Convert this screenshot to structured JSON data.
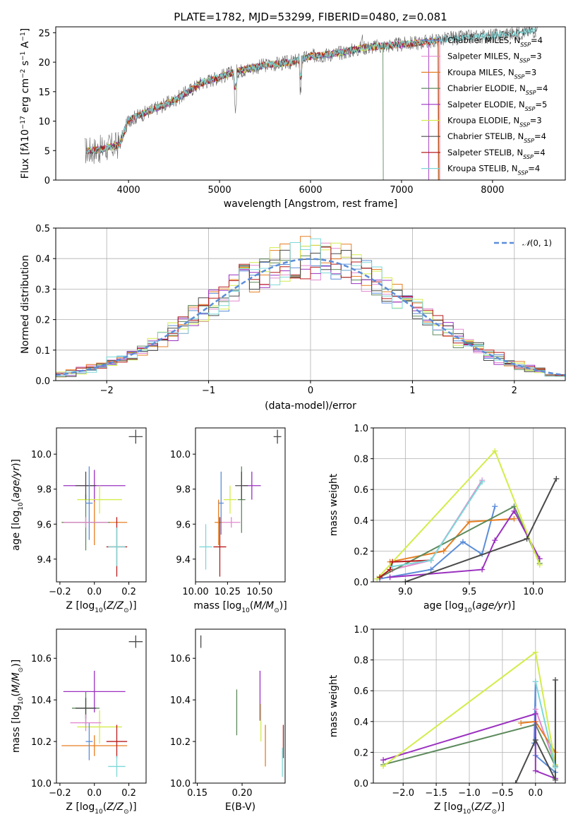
{
  "palette": {
    "orange": "#e67e22",
    "green": "#5d8a5d",
    "purple": "#9b30c0",
    "yellow": "#d4ec4a",
    "dark": "#4a4a4a",
    "red": "#b71c1c",
    "cyan": "#7dd8d8",
    "blue": "#5b8dd9",
    "pink": "#e28ad0"
  },
  "chart_data": [
    {
      "id": "spectrum",
      "type": "line",
      "title": "PLATE=1782, MJD=53299, FIBERID=0480, z=0.081",
      "xlabel": "wavelength [Angstrom, rest frame]",
      "ylabel": "Flux [f_λ 10^{-17} erg cm^{-2} s^{-1} A^{-1}]",
      "xlim": [
        3200,
        8800
      ],
      "ylim": [
        0,
        26
      ],
      "xticks": [
        "4000",
        "5000",
        "6000",
        "7000",
        "8000"
      ],
      "yticks": [
        "0",
        "5",
        "10",
        "15",
        "20",
        "25"
      ],
      "grid": false,
      "legend_position": "right",
      "legend": [
        {
          "name": "Chabrier MILES, N_SSP=4",
          "color": "#5b8dd9"
        },
        {
          "name": "Salpeter MILES, N_SSP=3",
          "color": "#e28ad0"
        },
        {
          "name": "Kroupa MILES, N_SSP=3",
          "color": "#e67e22"
        },
        {
          "name": "Chabrier ELODIE, N_SSP=4",
          "color": "#5d8a5d"
        },
        {
          "name": "Salpeter ELODIE, N_SSP=5",
          "color": "#9b30c0"
        },
        {
          "name": "Kroupa ELODIE, N_SSP=3",
          "color": "#d4ec4a"
        },
        {
          "name": "Chabrier STELIB, N_SSP=4",
          "color": "#4a4a4a"
        },
        {
          "name": "Salpeter STELIB, N_SSP=4",
          "color": "#b71c1c"
        },
        {
          "name": "Kroupa STELIB, N_SSP=4",
          "color": "#7dd8d8"
        }
      ],
      "continuum_anchor_points": {
        "x": [
          3550,
          3700,
          3900,
          4000,
          4200,
          4500,
          4800,
          5000,
          5200,
          5500,
          5800,
          6000,
          6300,
          6600,
          7000,
          7300,
          7500,
          8000,
          8300,
          8500
        ],
        "y": [
          5.0,
          5.2,
          6.0,
          10.2,
          11.5,
          13.5,
          16.5,
          17.5,
          18.5,
          19.5,
          20.0,
          21.0,
          21.5,
          22.5,
          23.0,
          23.5,
          24.0,
          24.5,
          25.0,
          25.5
        ]
      }
    },
    {
      "id": "residuals",
      "type": "histogram",
      "xlabel": "(data-model)/error",
      "ylabel": "Normed distribution",
      "xlim": [
        -2.5,
        2.5
      ],
      "ylim": [
        0,
        0.5
      ],
      "xticks": [
        "−2",
        "−1",
        "0",
        "1",
        "2"
      ],
      "yticks": [
        "0.0",
        "0.1",
        "0.2",
        "0.3",
        "0.4",
        "0.5"
      ],
      "grid": true,
      "legend": [
        {
          "name": "N(0,1)",
          "style": "dashed",
          "color": "#5b8dd9"
        }
      ],
      "legend_position": "upper right",
      "bin_width": 0.1,
      "bin_start": -2.5,
      "histogram_series": [
        "#5b8dd9",
        "#e28ad0",
        "#e67e22",
        "#5d8a5d",
        "#9b30c0",
        "#d4ec4a",
        "#4a4a4a",
        "#b71c1c",
        "#7dd8d8"
      ]
    },
    {
      "id": "age_vs_Z",
      "type": "errorbar",
      "xlabel": "Z [log10(Z/Z☉)]",
      "ylabel": "age [log10(age/yr)]",
      "xlim": [
        -0.22,
        0.3
      ],
      "ylim": [
        9.27,
        10.15
      ],
      "xticks": [
        "−0.2",
        "0.0",
        "0.2"
      ],
      "yticks": [
        "9.4",
        "9.6",
        "9.8",
        "10.0"
      ],
      "points": [
        {
          "x": 0.0,
          "y": 9.61,
          "xerr": 0.19,
          "yerr": 0.13,
          "color": "#e67e22"
        },
        {
          "x": -0.05,
          "y": 9.61,
          "xerr": 0.14,
          "yerr": 0.16,
          "color": "#5d8a5d"
        },
        {
          "x": 0.0,
          "y": 9.82,
          "xerr": 0.18,
          "yerr": 0.09,
          "color": "#9b30c0"
        },
        {
          "x": 0.03,
          "y": 9.74,
          "xerr": 0.13,
          "yerr": 0.08,
          "color": "#d4ec4a"
        },
        {
          "x": -0.05,
          "y": 9.82,
          "xerr": 0.06,
          "yerr": 0.08,
          "color": "#4a4a4a"
        },
        {
          "x": 0.13,
          "y": 9.47,
          "xerr": 0.06,
          "yerr": 0.17,
          "color": "#b71c1c"
        },
        {
          "x": 0.13,
          "y": 9.47,
          "xerr": 0.05,
          "yerr": 0.11,
          "color": "#7dd8d8"
        },
        {
          "x": -0.03,
          "y": 9.72,
          "xerr": 0.02,
          "yerr": 0.21,
          "color": "#5b8dd9"
        },
        {
          "x": -0.05,
          "y": 9.61,
          "xerr": 0.13,
          "yerr": 0.03,
          "color": "#e28ad0"
        },
        {
          "x": 0.24,
          "y": 10.1,
          "xerr": 0.04,
          "yerr": 0.04,
          "color": "#4a4a4a"
        }
      ]
    },
    {
      "id": "age_vs_mass",
      "type": "errorbar",
      "xlabel": "mass [log10(M/M☉)]",
      "xlim": [
        10.0,
        10.7
      ],
      "ylim": [
        9.27,
        10.15
      ],
      "xticks": [
        "10.00",
        "10.25",
        "10.50"
      ],
      "yticks": [
        "9.4",
        "9.6",
        "9.8",
        "10.0"
      ],
      "points": [
        {
          "x": 10.18,
          "y": 9.61,
          "xerr": 0.03,
          "yerr": 0.13,
          "color": "#e67e22"
        },
        {
          "x": 10.36,
          "y": 9.74,
          "xerr": 0.03,
          "yerr": 0.19,
          "color": "#5d8a5d"
        },
        {
          "x": 10.44,
          "y": 9.82,
          "xerr": 0.07,
          "yerr": 0.08,
          "color": "#9b30c0"
        },
        {
          "x": 10.27,
          "y": 9.74,
          "xerr": 0.05,
          "yerr": 0.08,
          "color": "#d4ec4a"
        },
        {
          "x": 10.36,
          "y": 9.82,
          "xerr": 0.05,
          "yerr": 0.08,
          "color": "#4a4a4a"
        },
        {
          "x": 10.19,
          "y": 9.47,
          "xerr": 0.05,
          "yerr": 0.17,
          "color": "#b71c1c"
        },
        {
          "x": 10.08,
          "y": 9.47,
          "xerr": 0.05,
          "yerr": 0.13,
          "color": "#7dd8d8"
        },
        {
          "x": 10.2,
          "y": 9.72,
          "xerr": 0.02,
          "yerr": 0.18,
          "color": "#5b8dd9"
        },
        {
          "x": 10.28,
          "y": 9.61,
          "xerr": 0.07,
          "yerr": 0.03,
          "color": "#e28ad0"
        },
        {
          "x": 10.64,
          "y": 10.1,
          "xerr": 0.03,
          "yerr": 0.04,
          "color": "#4a4a4a"
        }
      ]
    },
    {
      "id": "weight_vs_age",
      "type": "line",
      "xlabel": "age [log10(age/yr)]",
      "ylabel": "mass weight",
      "xlim": [
        8.75,
        10.25
      ],
      "ylim": [
        0,
        1.0
      ],
      "xticks": [
        "9.0",
        "9.5",
        "10.0"
      ],
      "yticks": [
        "0.0",
        "0.2",
        "0.4",
        "0.6",
        "0.8",
        "1.0"
      ],
      "grid": true,
      "series": [
        {
          "color": "#5b8dd9",
          "x": [
            8.8,
            9.2,
            9.45,
            9.6,
            9.7
          ],
          "y": [
            0.02,
            0.08,
            0.26,
            0.18,
            0.49
          ]
        },
        {
          "color": "#e28ad0",
          "x": [
            8.9,
            9.2,
            9.6
          ],
          "y": [
            0.08,
            0.14,
            0.66
          ]
        },
        {
          "color": "#e67e22",
          "x": [
            8.88,
            9.3,
            9.5,
            9.85
          ],
          "y": [
            0.13,
            0.2,
            0.39,
            0.41
          ]
        },
        {
          "color": "#5d8a5d",
          "x": [
            8.78,
            9.85,
            10.05
          ],
          "y": [
            0.02,
            0.49,
            0.12
          ]
        },
        {
          "color": "#9b30c0",
          "x": [
            8.88,
            9.6,
            9.7,
            9.85,
            10.05
          ],
          "y": [
            0.03,
            0.08,
            0.27,
            0.46,
            0.15
          ]
        },
        {
          "color": "#d4ec4a",
          "x": [
            8.78,
            9.7,
            10.05
          ],
          "y": [
            0.02,
            0.85,
            0.11
          ]
        },
        {
          "color": "#4a4a4a",
          "x": [
            9.0,
            9.95,
            10.18
          ],
          "y": [
            0.0,
            0.28,
            0.67
          ]
        },
        {
          "color": "#b71c1c",
          "x": [
            8.8,
            8.88,
            8.9,
            9.2
          ],
          "y": [
            0.03,
            0.08,
            0.13,
            0.14
          ]
        },
        {
          "color": "#7dd8d8",
          "x": [
            8.9,
            9.2,
            9.6
          ],
          "y": [
            0.1,
            0.14,
            0.65
          ]
        }
      ]
    },
    {
      "id": "mass_vs_Z",
      "type": "errorbar",
      "xlabel": "Z [log10(Z/Z☉)]",
      "ylabel": "mass [log10(M/M☉)]",
      "xlim": [
        -0.22,
        0.3
      ],
      "ylim": [
        10.0,
        10.74
      ],
      "xticks": [
        "−0.2",
        "0.0",
        "0.2"
      ],
      "yticks": [
        "10.0",
        "10.2",
        "10.4",
        "10.6"
      ],
      "points": [
        {
          "x": 0.0,
          "y": 10.18,
          "xerr": 0.19,
          "yerr": 0.05,
          "color": "#e67e22"
        },
        {
          "x": -0.05,
          "y": 10.36,
          "xerr": 0.08,
          "yerr": 0.08,
          "color": "#5d8a5d"
        },
        {
          "x": 0.0,
          "y": 10.44,
          "xerr": 0.18,
          "yerr": 0.1,
          "color": "#9b30c0"
        },
        {
          "x": 0.03,
          "y": 10.27,
          "xerr": 0.13,
          "yerr": 0.08,
          "color": "#d4ec4a"
        },
        {
          "x": -0.05,
          "y": 10.36,
          "xerr": 0.06,
          "yerr": 0.05,
          "color": "#4a4a4a"
        },
        {
          "x": 0.13,
          "y": 10.2,
          "xerr": 0.06,
          "yerr": 0.08,
          "color": "#b71c1c"
        },
        {
          "x": 0.13,
          "y": 10.08,
          "xerr": 0.05,
          "yerr": 0.05,
          "color": "#7dd8d8"
        },
        {
          "x": -0.03,
          "y": 10.2,
          "xerr": 0.02,
          "yerr": 0.09,
          "color": "#5b8dd9"
        },
        {
          "x": -0.05,
          "y": 10.29,
          "xerr": 0.09,
          "yerr": 0.04,
          "color": "#e28ad0"
        },
        {
          "x": 0.24,
          "y": 10.68,
          "xerr": 0.04,
          "yerr": 0.03,
          "color": "#4a4a4a"
        }
      ]
    },
    {
      "id": "mass_vs_EBV",
      "type": "errorbar",
      "xlabel": "E(B-V)",
      "xlim": [
        0.148,
        0.248
      ],
      "ylim": [
        10.0,
        10.74
      ],
      "xticks": [
        "0.15",
        "0.20"
      ],
      "yticks": [
        "10.0",
        "10.2",
        "10.4",
        "10.6"
      ],
      "points": [
        {
          "x": 0.226,
          "y": 10.18,
          "xerr": 0,
          "yerr": 0.1,
          "color": "#e67e22"
        },
        {
          "x": 0.194,
          "y": 10.34,
          "xerr": 0,
          "yerr": 0.11,
          "color": "#5d8a5d"
        },
        {
          "x": 0.22,
          "y": 10.42,
          "xerr": 0,
          "yerr": 0.12,
          "color": "#9b30c0"
        },
        {
          "x": 0.221,
          "y": 10.29,
          "xerr": 0,
          "yerr": 0.09,
          "color": "#d4ec4a"
        },
        {
          "x": 0.154,
          "y": 10.68,
          "xerr": 0,
          "yerr": 0.03,
          "color": "#4a4a4a"
        },
        {
          "x": 0.246,
          "y": 10.2,
          "xerr": 0,
          "yerr": 0.08,
          "color": "#b71c1c"
        },
        {
          "x": 0.245,
          "y": 10.1,
          "xerr": 0,
          "yerr": 0.07,
          "color": "#7dd8d8"
        }
      ]
    },
    {
      "id": "weight_vs_Z",
      "type": "line",
      "xlabel": "Z [log10(Z/Z☉)]",
      "ylabel": "mass weight",
      "xlim": [
        -2.45,
        0.45
      ],
      "ylim": [
        0,
        1.0
      ],
      "xticks": [
        "−2.0",
        "−1.5",
        "−1.0",
        "−0.5",
        "0.0"
      ],
      "yticks": [
        "0.0",
        "0.2",
        "0.4",
        "0.6",
        "0.8",
        "1.0"
      ],
      "grid": true,
      "series": [
        {
          "color": "#5b8dd9",
          "x": [
            -0.02,
            0.0,
            0.0,
            0.3
          ],
          "y": [
            0.26,
            0.66,
            0.18,
            0.07
          ]
        },
        {
          "color": "#e28ad0",
          "x": [
            0.0,
            0.3
          ],
          "y": [
            0.48,
            0.12
          ]
        },
        {
          "color": "#e67e22",
          "x": [
            -0.22,
            0.0,
            0.3
          ],
          "y": [
            0.39,
            0.4,
            0.2
          ]
        },
        {
          "color": "#5d8a5d",
          "x": [
            -2.3,
            0.0,
            0.3
          ],
          "y": [
            0.12,
            0.38,
            0.11
          ]
        },
        {
          "color": "#9b30c0",
          "x": [
            -2.3,
            0.0,
            0.0,
            0.3
          ],
          "y": [
            0.15,
            0.45,
            0.08,
            0.03
          ]
        },
        {
          "color": "#d4ec4a",
          "x": [
            -2.3,
            0.0,
            0.3
          ],
          "y": [
            0.11,
            0.85,
            0.12
          ]
        },
        {
          "color": "#4a4a4a",
          "x": [
            -0.3,
            0.0,
            0.3,
            0.3
          ],
          "y": [
            0.0,
            0.28,
            0.02,
            0.67
          ]
        },
        {
          "color": "#7dd8d8",
          "x": [
            0.0,
            0.3
          ],
          "y": [
            0.66,
            0.1
          ]
        }
      ]
    }
  ]
}
